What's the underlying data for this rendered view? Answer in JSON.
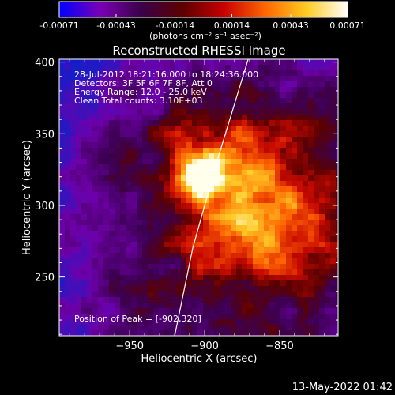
{
  "colorbar": {
    "ticks": [
      "-0.00071",
      "-0.00043",
      "-0.00014",
      "0.00014",
      "0.00043",
      "0.00071"
    ],
    "unit_label": "(photons cm⁻² s⁻¹ asec⁻²)",
    "range": [
      -0.00071,
      0.00071
    ],
    "colors": [
      "#0000ff",
      "#7a00b4",
      "#3a0048",
      "#5c0000",
      "#c80000",
      "#ff6600",
      "#ffcc22",
      "#ffffff"
    ]
  },
  "chart_data": {
    "type": "heatmap",
    "title": "Reconstructed RHESSI Image",
    "xlabel": "Heliocentric X (arcsec)",
    "ylabel": "Heliocentric Y (arcsec)",
    "xlim": [
      -997,
      -811
    ],
    "ylim": [
      209,
      402
    ],
    "xticks": [
      -950,
      -900,
      -850
    ],
    "yticks": [
      250,
      300,
      350,
      400
    ],
    "annotations": [
      "28-Jul-2012 18:21:16.000 to 18:24:36.000",
      "Detectors: 3F 5F 6F 7F 8F, Att 0",
      "Energy Range: 12.0 - 25.0 keV",
      "Clean     Total counts: 3.10E+03"
    ],
    "peak_label": "Position of Peak = [-902,320]",
    "peak": [
      -902,
      320
    ],
    "limb_line": [
      [
        -920,
        209
      ],
      [
        -908,
        270
      ],
      [
        -892,
        330
      ],
      [
        -871,
        402
      ]
    ],
    "grid": false
  },
  "footer": {
    "date": "13-May-2022 01:42"
  }
}
